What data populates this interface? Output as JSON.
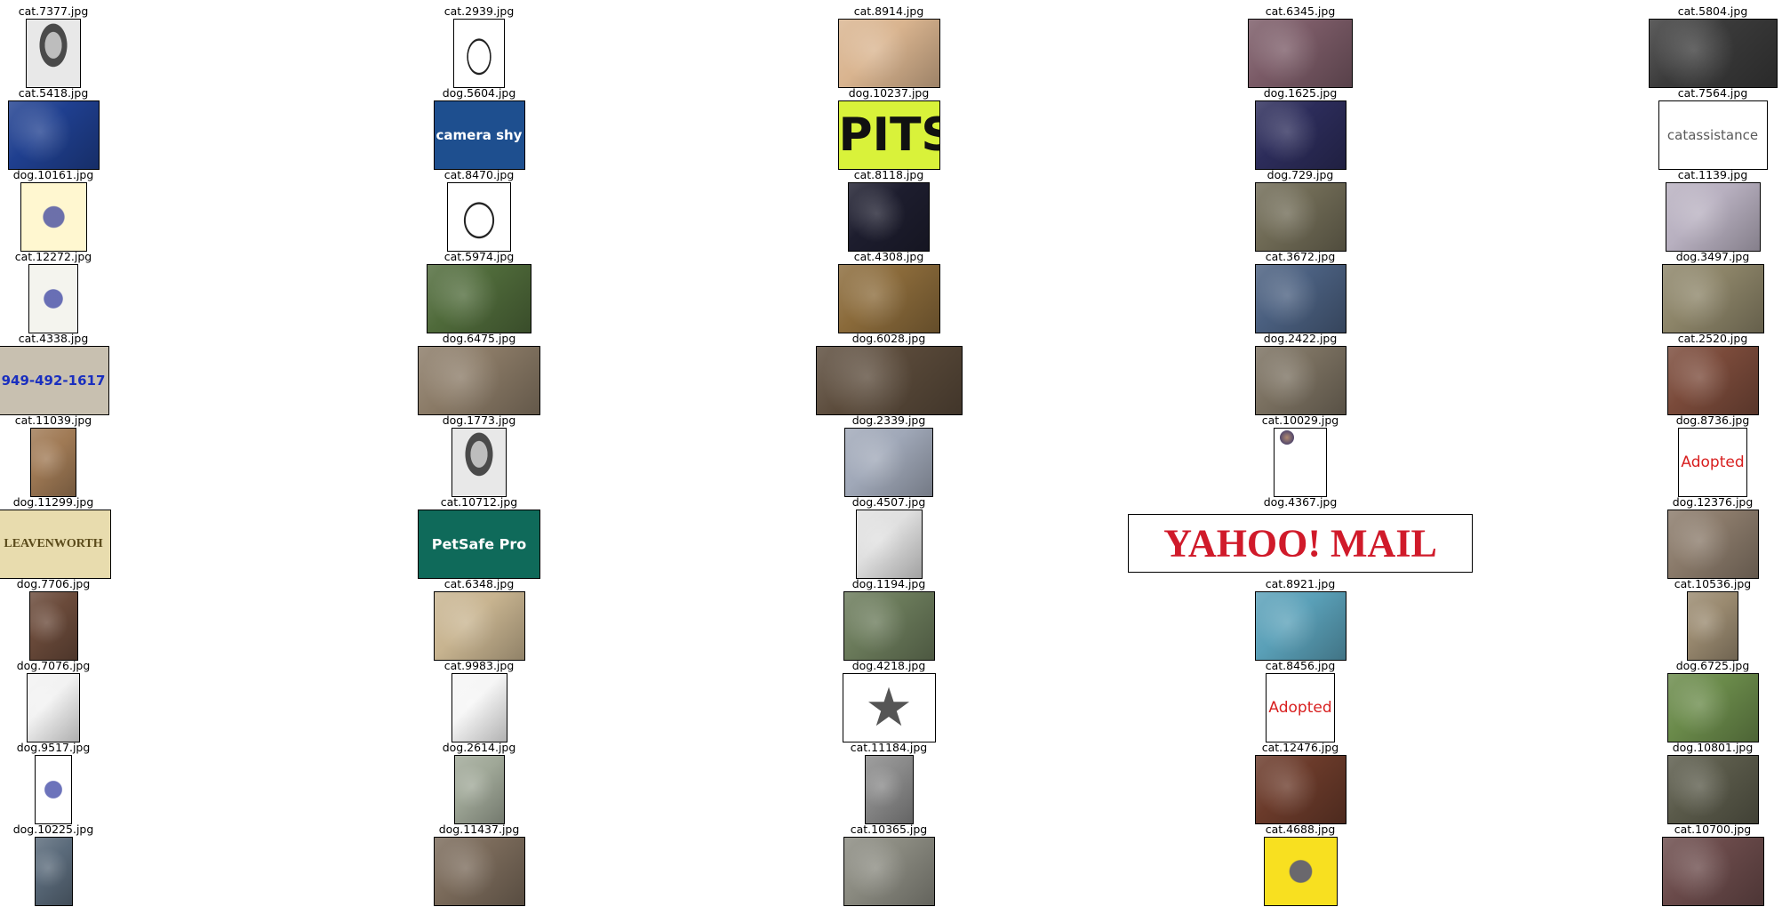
{
  "figure": {
    "rows": [
      [
        {
          "caption": "cat.7377.jpg",
          "style": "portrait-bw",
          "bg": "#e8e8e8"
        },
        {
          "caption": "cat.2939.jpg",
          "style": "sketch",
          "bg": "#ffffff"
        },
        {
          "caption": "cat.8914.jpg",
          "style": "photo",
          "bg": "#d9b48f"
        },
        {
          "caption": "cat.6345.jpg",
          "style": "photo",
          "bg": "#7a5a66"
        },
        {
          "caption": "cat.5804.jpg",
          "style": "photo",
          "bg": "#3a3a3a"
        }
      ],
      [
        {
          "caption": "cat.5418.jpg",
          "style": "photo",
          "bg": "#1f3f8f"
        },
        {
          "caption": "dog.5604.jpg",
          "style": "text",
          "bg": "#1e4f8f",
          "text": "camera shy",
          "fg": "#ffffff"
        },
        {
          "caption": "dog.10237.jpg",
          "style": "text",
          "bg": "#d9f23a",
          "text": "PITS",
          "fg": "#111111"
        },
        {
          "caption": "dog.1625.jpg",
          "style": "photo",
          "bg": "#2c2c5a"
        },
        {
          "caption": "cat.7564.jpg",
          "style": "text",
          "bg": "#ffffff",
          "text": "catassistance",
          "fg": "#5a5a5a"
        }
      ],
      [
        {
          "caption": "dog.10161.jpg",
          "style": "logo",
          "bg": "#fff7d0"
        },
        {
          "caption": "cat.8470.jpg",
          "style": "sketch",
          "bg": "#ffffff"
        },
        {
          "caption": "cat.8118.jpg",
          "style": "photo",
          "bg": "#1d1d2e"
        },
        {
          "caption": "dog.729.jpg",
          "style": "photo",
          "bg": "#6f6a55"
        },
        {
          "caption": "cat.1139.jpg",
          "style": "photo",
          "bg": "#b8b0c0"
        }
      ],
      [
        {
          "caption": "cat.12272.jpg",
          "style": "logo",
          "bg": "#f4f4ee"
        },
        {
          "caption": "cat.5974.jpg",
          "style": "photo",
          "bg": "#4f6a3a"
        },
        {
          "caption": "cat.4308.jpg",
          "style": "photo",
          "bg": "#8a6a3a"
        },
        {
          "caption": "cat.3672.jpg",
          "style": "photo",
          "bg": "#4a5f7f"
        },
        {
          "caption": "dog.3497.jpg",
          "style": "photo",
          "bg": "#8c8468"
        }
      ],
      [
        {
          "caption": "cat.4338.jpg",
          "style": "text",
          "bg": "#c8c0b0",
          "text": "949-492-1617",
          "fg": "#1a2fbf"
        },
        {
          "caption": "dog.6475.jpg",
          "style": "photo",
          "bg": "#8a7a66"
        },
        {
          "caption": "dog.6028.jpg",
          "style": "photo",
          "bg": "#5a4a3a"
        },
        {
          "caption": "dog.2422.jpg",
          "style": "photo",
          "bg": "#7a7060"
        },
        {
          "caption": "cat.2520.jpg",
          "style": "photo",
          "bg": "#7a4a3a"
        }
      ],
      [
        {
          "caption": "cat.11039.jpg",
          "style": "photo",
          "bg": "#a07a55"
        },
        {
          "caption": "dog.1773.jpg",
          "style": "portrait-bw",
          "bg": "#dcdcdc"
        },
        {
          "caption": "dog.2339.jpg",
          "style": "photo",
          "bg": "#a0a8b8"
        },
        {
          "caption": "cat.10029.jpg",
          "style": "tiny",
          "bg": "#ffffff"
        },
        {
          "caption": "dog.8736.jpg",
          "style": "text",
          "bg": "#ffffff",
          "text": "Adopted",
          "fg": "#d81f1f"
        }
      ],
      [
        {
          "caption": "dog.11299.jpg",
          "style": "text",
          "bg": "#e8dcae",
          "text": "LEAVENWORTH",
          "fg": "#5a4a1a"
        },
        {
          "caption": "cat.10712.jpg",
          "style": "text",
          "bg": "#0f6a5a",
          "text": "PetSafe Pro",
          "fg": "#ffffff"
        },
        {
          "caption": "dog.4507.jpg",
          "style": "photo",
          "bg": "#e0e0e0"
        },
        {
          "caption": "dog.4367.jpg",
          "style": "text",
          "bg": "#ffffff",
          "text": "YAHOO! MAIL",
          "fg": "#d01a2a"
        },
        {
          "caption": "dog.12376.jpg",
          "style": "photo",
          "bg": "#8a7a6a"
        }
      ],
      [
        {
          "caption": "dog.7706.jpg",
          "style": "photo",
          "bg": "#6a4a3a"
        },
        {
          "caption": "cat.6348.jpg",
          "style": "photo",
          "bg": "#c8b490"
        },
        {
          "caption": "dog.1194.jpg",
          "style": "photo",
          "bg": "#6a7a5a"
        },
        {
          "caption": "cat.8921.jpg",
          "style": "photo",
          "bg": "#5aa0b8"
        },
        {
          "caption": "cat.10536.jpg",
          "style": "photo",
          "bg": "#9a8a70"
        }
      ],
      [
        {
          "caption": "dog.7076.jpg",
          "style": "photo",
          "bg": "#f2f2f2"
        },
        {
          "caption": "cat.9983.jpg",
          "style": "photo",
          "bg": "#f6f6f6"
        },
        {
          "caption": "dog.4218.jpg",
          "style": "star",
          "bg": "#ffffff"
        },
        {
          "caption": "cat.8456.jpg",
          "style": "text",
          "bg": "#ffffff",
          "text": "Adopted",
          "fg": "#d81f1f"
        },
        {
          "caption": "dog.6725.jpg",
          "style": "photo",
          "bg": "#6a8a4a"
        }
      ],
      [
        {
          "caption": "dog.9517.jpg",
          "style": "logo",
          "bg": "#ffffff"
        },
        {
          "caption": "dog.2614.jpg",
          "style": "photo",
          "bg": "#a0a898"
        },
        {
          "caption": "cat.11184.jpg",
          "style": "photo",
          "bg": "#8a8a8a"
        },
        {
          "caption": "cat.12476.jpg",
          "style": "photo",
          "bg": "#6a3a2a"
        },
        {
          "caption": "dog.10801.jpg",
          "style": "photo",
          "bg": "#5a5a4a"
        }
      ],
      [
        {
          "caption": "dog.10225.jpg",
          "style": "photo",
          "bg": "#5a6a7a"
        },
        {
          "caption": "dog.11437.jpg",
          "style": "photo",
          "bg": "#7a6a5a"
        },
        {
          "caption": "cat.10365.jpg",
          "style": "photo",
          "bg": "#8a8a80"
        },
        {
          "caption": "cat.4688.jpg",
          "style": "logo",
          "bg": "#f8e020"
        },
        {
          "caption": "cat.10700.jpg",
          "style": "photo",
          "bg": "#6a4a4a"
        }
      ]
    ]
  }
}
